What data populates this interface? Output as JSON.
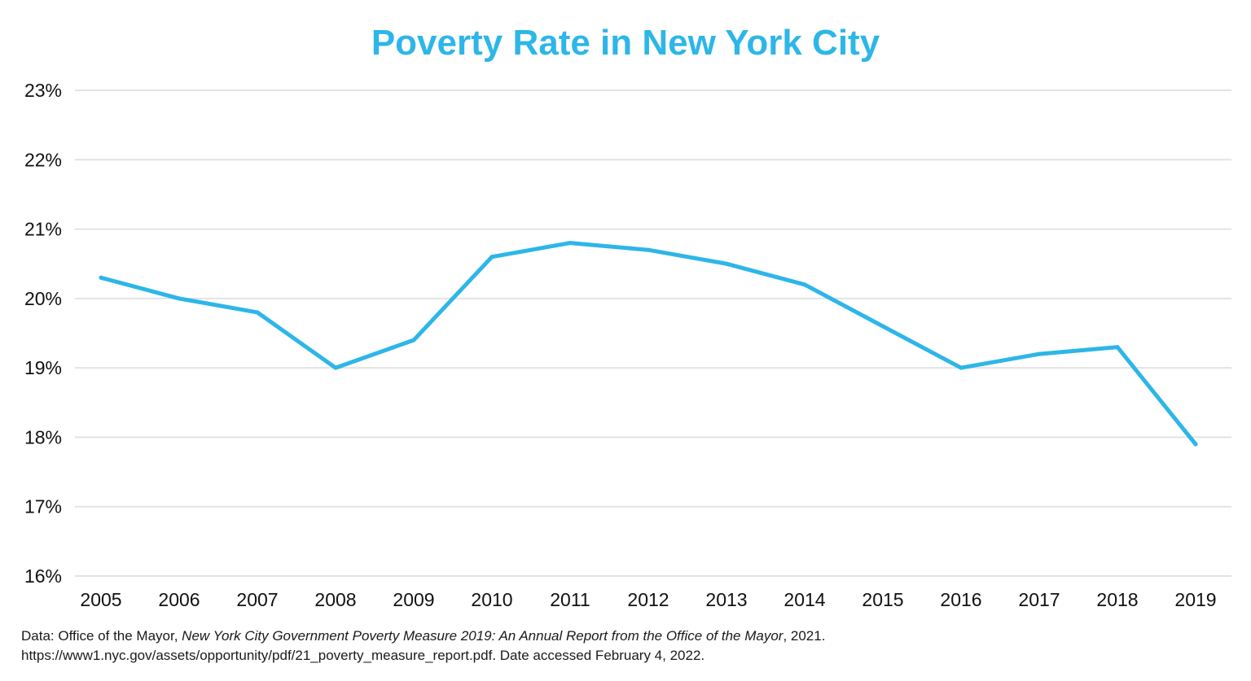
{
  "chart_data": {
    "type": "line",
    "title": "Poverty Rate in New York City",
    "xlabel": "",
    "ylabel": "",
    "x": [
      "2005",
      "2006",
      "2007",
      "2008",
      "2009",
      "2010",
      "2011",
      "2012",
      "2013",
      "2014",
      "2015",
      "2016",
      "2017",
      "2018",
      "2019"
    ],
    "series": [
      {
        "values": [
          20.3,
          20.0,
          19.8,
          19.0,
          19.4,
          20.6,
          20.8,
          20.7,
          20.5,
          20.2,
          19.6,
          19.0,
          19.2,
          19.3,
          17.9
        ]
      }
    ],
    "ylim": [
      16,
      23
    ],
    "yticks": [
      16,
      17,
      18,
      19,
      20,
      21,
      22,
      23
    ],
    "ytick_labels": [
      "16%",
      "17%",
      "18%",
      "19%",
      "20%",
      "21%",
      "22%",
      "23%"
    ],
    "grid": true,
    "legend": "none",
    "colors": {
      "line": "#2db6e8",
      "title": "#2db6e8",
      "grid": "#e3e3e3"
    }
  },
  "source": {
    "prefix": "Data: Office of the Mayor, ",
    "italic": "New York City Government Poverty Measure 2019: An Annual Report from the Office of the Mayor",
    "suffix": ", 2021.",
    "line2": "https://www1.nyc.gov/assets/opportunity/pdf/21_poverty_measure_report.pdf. Date accessed February 4, 2022."
  }
}
